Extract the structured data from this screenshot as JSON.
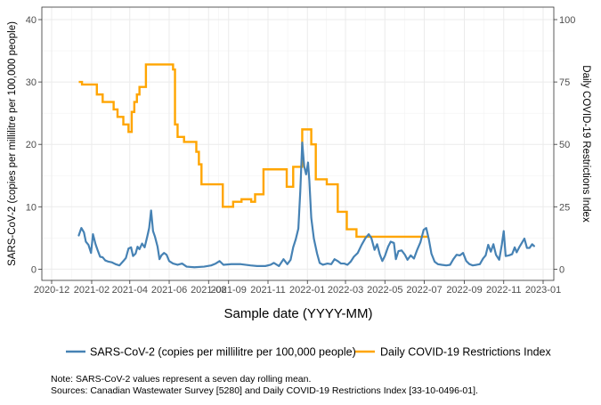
{
  "chart_data": {
    "type": "line",
    "xlabel": "Sample date (YYYY-MM)",
    "ylabel_left": "SARS-CoV-2 (copies per millilitre per 100,000 people)",
    "ylabel_right": "Daily COVID-19 Restrictions Index",
    "x_ticks": [
      "2020-12",
      "2021-02",
      "2021-04",
      "2021-06",
      "2021-08",
      "2021-09",
      "2021-11",
      "2022-01",
      "2022-03",
      "2022-05",
      "2022-07",
      "2022-09",
      "2022-11",
      "2023-01"
    ],
    "y_left_ticks": [
      0,
      10,
      20,
      30,
      40
    ],
    "y_right_ticks": [
      0,
      25,
      50,
      75,
      100
    ],
    "ylim_left": [
      -1.8,
      42
    ],
    "ylim_right": [
      -4.5,
      105
    ],
    "grid": true,
    "legend_position": "bottom",
    "series": [
      {
        "name": "SARS-CoV-2 (copies per millilitre per 100,000 people)",
        "color": "#4682B4",
        "axis": "left",
        "points": [
          [
            "2021-01-12",
            5.4
          ],
          [
            "2021-01-16",
            6.6
          ],
          [
            "2021-01-20",
            5.9
          ],
          [
            "2021-01-23",
            4.4
          ],
          [
            "2021-01-27",
            3.9
          ],
          [
            "2021-01-31",
            2.6
          ],
          [
            "2021-02-03",
            5.6
          ],
          [
            "2021-02-07",
            4.0
          ],
          [
            "2021-02-10",
            3.1
          ],
          [
            "2021-02-14",
            2.0
          ],
          [
            "2021-02-18",
            1.9
          ],
          [
            "2021-02-22",
            1.4
          ],
          [
            "2021-02-27",
            1.2
          ],
          [
            "2021-03-04",
            1.1
          ],
          [
            "2021-03-10",
            0.8
          ],
          [
            "2021-03-16",
            0.6
          ],
          [
            "2021-03-22",
            1.3
          ],
          [
            "2021-03-26",
            1.8
          ],
          [
            "2021-03-30",
            3.3
          ],
          [
            "2021-04-03",
            3.5
          ],
          [
            "2021-04-06",
            2.1
          ],
          [
            "2021-04-10",
            2.5
          ],
          [
            "2021-04-13",
            3.6
          ],
          [
            "2021-04-16",
            3.2
          ],
          [
            "2021-04-20",
            4.1
          ],
          [
            "2021-04-24",
            3.5
          ],
          [
            "2021-04-28",
            5.2
          ],
          [
            "2021-05-01",
            6.6
          ],
          [
            "2021-05-04",
            9.4
          ],
          [
            "2021-05-07",
            6.1
          ],
          [
            "2021-05-10",
            5.2
          ],
          [
            "2021-05-14",
            3.6
          ],
          [
            "2021-05-17",
            1.6
          ],
          [
            "2021-05-20",
            2.2
          ],
          [
            "2021-05-24",
            2.6
          ],
          [
            "2021-05-28",
            2.3
          ],
          [
            "2021-06-01",
            1.3
          ],
          [
            "2021-06-07",
            0.9
          ],
          [
            "2021-06-14",
            0.7
          ],
          [
            "2021-06-21",
            0.9
          ],
          [
            "2021-06-28",
            0.4
          ],
          [
            "2021-07-10",
            0.3
          ],
          [
            "2021-07-25",
            0.4
          ],
          [
            "2021-08-05",
            0.6
          ],
          [
            "2021-08-12",
            0.9
          ],
          [
            "2021-08-18",
            1.3
          ],
          [
            "2021-08-24",
            0.7
          ],
          [
            "2021-09-05",
            0.8
          ],
          [
            "2021-09-20",
            0.8
          ],
          [
            "2021-10-05",
            0.6
          ],
          [
            "2021-10-15",
            0.5
          ],
          [
            "2021-10-28",
            0.5
          ],
          [
            "2021-11-05",
            0.7
          ],
          [
            "2021-11-10",
            1.0
          ],
          [
            "2021-11-18",
            0.5
          ],
          [
            "2021-11-25",
            1.6
          ],
          [
            "2021-12-01",
            0.8
          ],
          [
            "2021-12-06",
            1.5
          ],
          [
            "2021-12-10",
            3.5
          ],
          [
            "2021-12-14",
            4.8
          ],
          [
            "2021-12-18",
            6.5
          ],
          [
            "2021-12-21",
            12.5
          ],
          [
            "2021-12-24",
            20.3
          ],
          [
            "2021-12-27",
            16.5
          ],
          [
            "2021-12-30",
            15.2
          ],
          [
            "2022-01-02",
            17.1
          ],
          [
            "2022-01-04",
            14.2
          ],
          [
            "2022-01-07",
            8.2
          ],
          [
            "2022-01-11",
            4.9
          ],
          [
            "2022-01-16",
            2.5
          ],
          [
            "2022-01-20",
            1.0
          ],
          [
            "2022-01-25",
            0.7
          ],
          [
            "2022-02-01",
            0.9
          ],
          [
            "2022-02-07",
            0.8
          ],
          [
            "2022-02-12",
            1.6
          ],
          [
            "2022-02-17",
            1.3
          ],
          [
            "2022-02-22",
            0.9
          ],
          [
            "2022-02-27",
            0.9
          ],
          [
            "2022-03-04",
            0.7
          ],
          [
            "2022-03-09",
            1.2
          ],
          [
            "2022-03-14",
            2.0
          ],
          [
            "2022-03-20",
            2.6
          ],
          [
            "2022-03-26",
            3.9
          ],
          [
            "2022-04-01",
            5.0
          ],
          [
            "2022-04-06",
            5.6
          ],
          [
            "2022-04-10",
            5.0
          ],
          [
            "2022-04-15",
            3.1
          ],
          [
            "2022-04-19",
            4.0
          ],
          [
            "2022-04-23",
            2.4
          ],
          [
            "2022-04-27",
            1.3
          ],
          [
            "2022-05-01",
            2.1
          ],
          [
            "2022-05-06",
            3.6
          ],
          [
            "2022-05-10",
            4.4
          ],
          [
            "2022-05-15",
            4.2
          ],
          [
            "2022-05-18",
            1.6
          ],
          [
            "2022-05-22",
            2.9
          ],
          [
            "2022-05-27",
            3.0
          ],
          [
            "2022-06-01",
            2.3
          ],
          [
            "2022-06-05",
            1.5
          ],
          [
            "2022-06-10",
            2.2
          ],
          [
            "2022-06-15",
            1.7
          ],
          [
            "2022-06-20",
            3.1
          ],
          [
            "2022-06-25",
            4.3
          ],
          [
            "2022-06-30",
            6.3
          ],
          [
            "2022-07-04",
            6.6
          ],
          [
            "2022-07-08",
            4.8
          ],
          [
            "2022-07-12",
            2.5
          ],
          [
            "2022-07-17",
            1.2
          ],
          [
            "2022-07-22",
            0.8
          ],
          [
            "2022-07-28",
            0.7
          ],
          [
            "2022-08-04",
            0.6
          ],
          [
            "2022-08-10",
            0.7
          ],
          [
            "2022-08-15",
            1.6
          ],
          [
            "2022-08-20",
            2.3
          ],
          [
            "2022-08-25",
            2.2
          ],
          [
            "2022-08-30",
            2.6
          ],
          [
            "2022-09-04",
            1.3
          ],
          [
            "2022-09-09",
            0.8
          ],
          [
            "2022-09-14",
            0.6
          ],
          [
            "2022-09-20",
            0.7
          ],
          [
            "2022-09-25",
            0.8
          ],
          [
            "2022-09-30",
            1.7
          ],
          [
            "2022-10-04",
            2.2
          ],
          [
            "2022-10-08",
            3.9
          ],
          [
            "2022-10-12",
            2.8
          ],
          [
            "2022-10-16",
            4.0
          ],
          [
            "2022-10-20",
            2.3
          ],
          [
            "2022-10-25",
            1.5
          ],
          [
            "2022-10-29",
            3.9
          ],
          [
            "2022-11-01",
            6.1
          ],
          [
            "2022-11-04",
            2.1
          ],
          [
            "2022-11-09",
            2.2
          ],
          [
            "2022-11-14",
            2.4
          ],
          [
            "2022-11-18",
            3.5
          ],
          [
            "2022-11-21",
            2.7
          ],
          [
            "2022-11-25",
            3.5
          ],
          [
            "2022-11-29",
            4.2
          ],
          [
            "2022-12-03",
            4.9
          ],
          [
            "2022-12-07",
            3.4
          ],
          [
            "2022-12-11",
            3.4
          ],
          [
            "2022-12-15",
            4.0
          ],
          [
            "2022-12-18",
            3.7
          ]
        ]
      },
      {
        "name": "Daily COVID-19 Restrictions Index",
        "color": "#FFA500",
        "axis": "right",
        "steps": [
          [
            "2021-01-12",
            75
          ],
          [
            "2021-01-17",
            74
          ],
          [
            "2021-02-09",
            70
          ],
          [
            "2021-02-18",
            67
          ],
          [
            "2021-03-07",
            64
          ],
          [
            "2021-03-13",
            61
          ],
          [
            "2021-03-22",
            58
          ],
          [
            "2021-03-30",
            55
          ],
          [
            "2021-04-04",
            63
          ],
          [
            "2021-04-08",
            67
          ],
          [
            "2021-04-12",
            70
          ],
          [
            "2021-04-16",
            73
          ],
          [
            "2021-04-26",
            82
          ],
          [
            "2021-06-07",
            80
          ],
          [
            "2021-06-10",
            58
          ],
          [
            "2021-06-14",
            53
          ],
          [
            "2021-06-24",
            51
          ],
          [
            "2021-07-13",
            47
          ],
          [
            "2021-07-17",
            42
          ],
          [
            "2021-07-21",
            34
          ],
          [
            "2021-08-23",
            25
          ],
          [
            "2021-09-08",
            27
          ],
          [
            "2021-09-21",
            28
          ],
          [
            "2021-10-06",
            27
          ],
          [
            "2021-10-12",
            30
          ],
          [
            "2021-10-25",
            40
          ],
          [
            "2021-11-30",
            33
          ],
          [
            "2021-12-10",
            41
          ],
          [
            "2021-12-24",
            56
          ],
          [
            "2022-01-07",
            50
          ],
          [
            "2022-01-14",
            36
          ],
          [
            "2022-01-31",
            34
          ],
          [
            "2022-02-17",
            23
          ],
          [
            "2022-03-03",
            16
          ],
          [
            "2022-03-18",
            13
          ],
          [
            "2022-07-08",
            13
          ]
        ]
      }
    ]
  },
  "legend": {
    "items": [
      {
        "label": "SARS-CoV-2 (copies per millilitre per 100,000 people)",
        "color": "#4682B4"
      },
      {
        "label": "Daily COVID-19 Restrictions Index",
        "color": "#FFA500"
      }
    ]
  },
  "notes": {
    "line1": "Note: SARS-CoV-2 values represent a seven day rolling mean.",
    "line2": "Sources: Canadian Wastewater Survey [5280] and Daily COVID-19 Restrictions Index [33-10-0496-01]."
  }
}
